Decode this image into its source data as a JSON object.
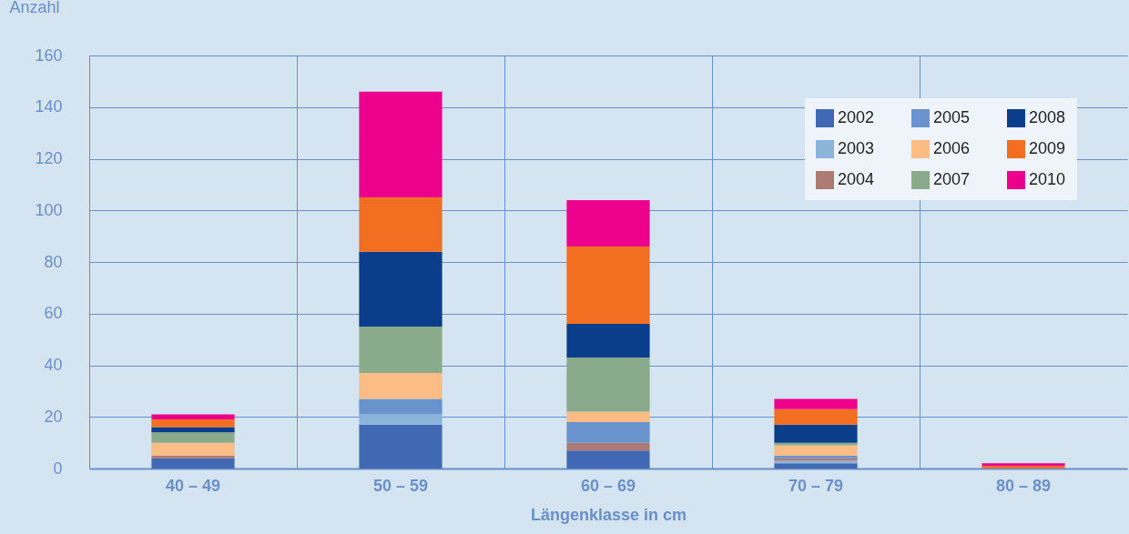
{
  "chart_data": {
    "type": "bar",
    "stacked": true,
    "xlabel": "Längenklasse in cm",
    "ylabel": "Anzahl",
    "categories": [
      "40 – 49",
      "50 – 59",
      "60 – 69",
      "70 – 79",
      "80 – 89"
    ],
    "ylim": [
      0,
      160
    ],
    "yticks": [
      0,
      20,
      40,
      60,
      80,
      100,
      120,
      140,
      160
    ],
    "grid": true,
    "legend": "top right",
    "series": [
      {
        "name": "2002",
        "color": "#4169b3",
        "values": [
          4,
          17,
          7,
          2,
          0
        ]
      },
      {
        "name": "2003",
        "color": "#8ab4d9",
        "values": [
          0,
          4,
          0,
          1,
          0
        ]
      },
      {
        "name": "2004",
        "color": "#ad7b74",
        "values": [
          1,
          0,
          3,
          1,
          0
        ]
      },
      {
        "name": "2005",
        "color": "#6893cc",
        "values": [
          0,
          6,
          8,
          1,
          0
        ]
      },
      {
        "name": "2006",
        "color": "#fbbc85",
        "values": [
          5,
          10,
          4,
          4,
          0
        ]
      },
      {
        "name": "2007",
        "color": "#8aaa8c",
        "values": [
          4,
          18,
          21,
          1,
          0
        ]
      },
      {
        "name": "2008",
        "color": "#0a3d8a",
        "values": [
          2,
          29,
          13,
          7,
          0
        ]
      },
      {
        "name": "2009",
        "color": "#f26e21",
        "values": [
          3,
          21,
          30,
          6,
          1
        ]
      },
      {
        "name": "2010",
        "color": "#ec008c",
        "values": [
          2,
          41,
          18,
          4,
          1
        ]
      }
    ]
  }
}
